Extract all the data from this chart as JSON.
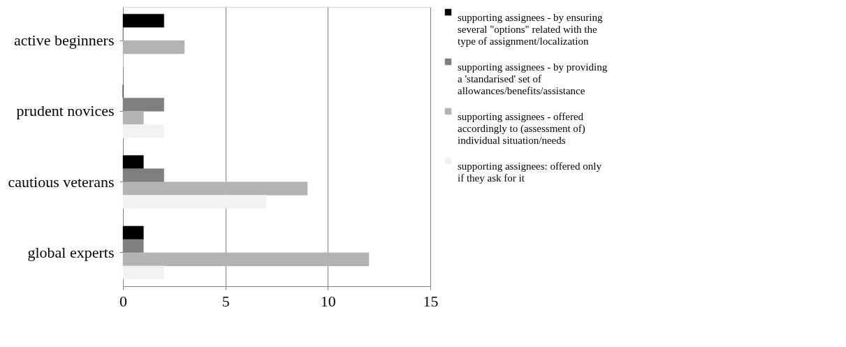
{
  "chart_data": {
    "type": "bar",
    "orientation": "horizontal",
    "categories": [
      "active beginners",
      "prudent novices",
      "cautious veterans",
      "global experts"
    ],
    "series": [
      {
        "name": "supporting assignees - by ensuring several \"options\" related with the type of assignment/localization",
        "color": "#000000",
        "values": [
          2,
          0,
          1,
          1
        ]
      },
      {
        "name": "supporting assignees - by providing a  'standarised' set of allowances/benefits/assistance",
        "color": "#7f7f7f",
        "values": [
          0,
          2,
          2,
          1
        ]
      },
      {
        "name": "supporting assignees - offered accordingly to (assessment of) individual situation/needs",
        "color": "#b3b3b3",
        "values": [
          3,
          1,
          9,
          12
        ]
      },
      {
        "name": "supporting assignees: offered only if they ask for it",
        "color": "#f2f2f2",
        "values": [
          0,
          2,
          7,
          2
        ]
      }
    ],
    "xlim": [
      0,
      15
    ],
    "xticks": [
      0,
      5,
      10,
      15
    ],
    "grid": "x",
    "legend": "right"
  }
}
